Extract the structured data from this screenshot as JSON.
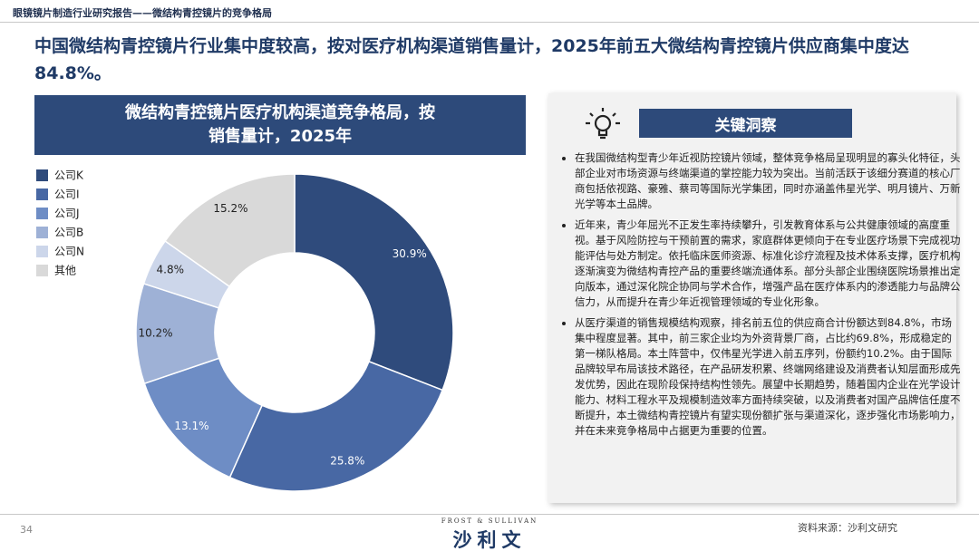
{
  "header": {
    "report": "眼镜镜片制造行业研究报告——微结构青控镜片的竞争格局",
    "headline": "中国微结构青控镜片行业集中度较高，按对医疗机构渠道销售量计，2025年前五大微结构青控镜片供应商集中度达84.8%。"
  },
  "chart_data": {
    "type": "donut",
    "title": "微结构青控镜片医疗机构渠道竞争格局，按销售量计，2025年",
    "categories": [
      "公司K",
      "公司I",
      "公司J",
      "公司B",
      "公司N",
      "其他"
    ],
    "values": [
      30.9,
      25.8,
      13.1,
      10.2,
      4.8,
      15.2
    ],
    "value_labels": [
      "30.9%",
      "25.8%",
      "13.1%",
      "10.2%",
      "4.8%",
      "15.2%"
    ],
    "colors": [
      "#2f4b7c",
      "#4868a4",
      "#6e8dc5",
      "#9eb1d6",
      "#ccd6ea",
      "#d9d9d9"
    ]
  },
  "insights": {
    "title": "关键洞察",
    "bullets": [
      "在我国微结构型青少年近视防控镜片领域，整体竞争格局呈现明显的寡头化特征，头部企业对市场资源与终端渠道的掌控能力较为突出。当前活跃于该细分赛道的核心厂商包括依视路、豪雅、蔡司等国际光学集团，同时亦涵盖伟星光学、明月镜片、万新光学等本土品牌。",
      "近年来，青少年屈光不正发生率持续攀升，引发教育体系与公共健康领域的高度重视。基于风险防控与干预前置的需求，家庭群体更倾向于在专业医疗场景下完成视功能评估与处方制定。依托临床医师资源、标准化诊疗流程及技术体系支撑，医疗机构逐渐演变为微结构青控产品的重要终端流通体系。部分头部企业围绕医院场景推出定向版本，通过深化院企协同与学术合作，增强产品在医疗体系内的渗透能力与品牌公信力，从而提升在青少年近视管理领域的专业化形象。",
      "从医疗渠道的销售规模结构观察，排名前五位的供应商合计份额达到84.8%，市场集中程度显著。其中，前三家企业均为外资背景厂商，占比约69.8%，形成稳定的第一梯队格局。本土阵营中，仅伟星光学进入前五序列，份额约10.2%。由于国际品牌较早布局该技术路径，在产品研发积累、终端网络建设及消费者认知层面形成先发优势，因此在现阶段保持结构性领先。展望中长期趋势，随着国内企业在光学设计能力、材料工程水平及规模制造效率方面持续突破，以及消费者对国产品牌信任度不断提升，本土微结构青控镜片有望实现份额扩张与渠道深化，逐步强化市场影响力，并在未来竞争格局中占据更为重要的位置。"
    ]
  },
  "footer": {
    "page": "34",
    "brand_small": "FROST & SULLIVAN",
    "brand": "沙利文",
    "source": "资料来源：沙利文研究"
  }
}
